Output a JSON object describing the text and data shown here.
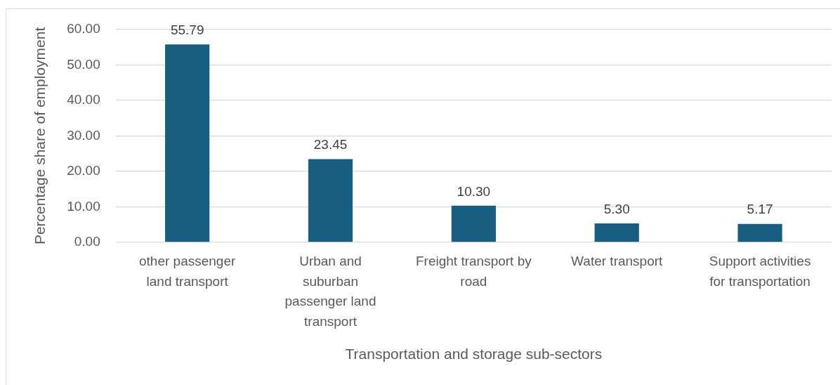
{
  "chart_data": {
    "type": "bar",
    "categories": [
      "other passenger\nland transport",
      "Urban and\nsuburban\npassenger land\ntransport",
      "Freight transport by\nroad",
      "Water transport",
      "Support activities\nfor transportation"
    ],
    "values": [
      55.79,
      23.45,
      10.3,
      5.3,
      5.17
    ],
    "value_labels": [
      "55.79",
      "23.45",
      "10.30",
      "5.30",
      "5.17"
    ],
    "color": "#175e80",
    "xlabel": "Transportation and storage sub-sectors",
    "ylabel": "Percentage share of employment",
    "ylim": [
      0,
      60
    ],
    "yticks": [
      {
        "value": 0,
        "label": "0.00"
      },
      {
        "value": 10,
        "label": "10.00"
      },
      {
        "value": 20,
        "label": "20.00"
      },
      {
        "value": 30,
        "label": "30.00"
      },
      {
        "value": 40,
        "label": "40.00"
      },
      {
        "value": 50,
        "label": "50.00"
      },
      {
        "value": 60,
        "label": "60.00"
      }
    ],
    "grid": "y",
    "legend": false
  }
}
